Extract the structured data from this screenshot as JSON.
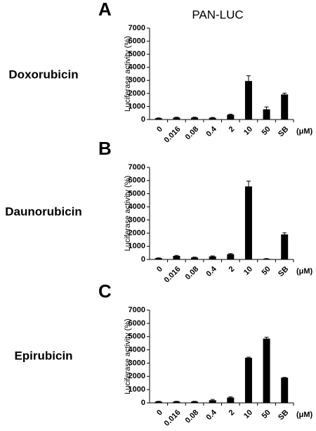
{
  "chart_data": [
    {
      "type": "bar",
      "panel_label": "A",
      "title": "PAN-LUC",
      "row_label": "Doxorubicin",
      "ylabel": "Luciferase activity (%)",
      "unit_label": "(μM)",
      "categories": [
        "0",
        "0.016",
        "0.08",
        "0.4",
        "2",
        "10",
        "50",
        "SB"
      ],
      "values": [
        100,
        150,
        150,
        130,
        370,
        2950,
        780,
        1920
      ],
      "errors": [
        20,
        30,
        30,
        30,
        40,
        400,
        180,
        100
      ],
      "color": "#000000",
      "ylim": [
        0,
        7000
      ],
      "yticks": [
        0,
        1000,
        2000,
        3000,
        4000,
        5000,
        6000,
        7000
      ]
    },
    {
      "type": "bar",
      "panel_label": "B",
      "row_label": "Daunorubicin",
      "ylabel": "Luciferase activity (%)",
      "unit_label": "(μM)",
      "categories": [
        "0",
        "0.016",
        "0.08",
        "0.4",
        "2",
        "10",
        "50",
        "SB"
      ],
      "values": [
        100,
        270,
        150,
        230,
        400,
        5550,
        50,
        1900
      ],
      "errors": [
        20,
        40,
        30,
        40,
        40,
        400,
        20,
        130
      ],
      "color": "#000000",
      "ylim": [
        0,
        7000
      ],
      "yticks": [
        0,
        1000,
        2000,
        3000,
        4000,
        5000,
        6000,
        7000
      ]
    },
    {
      "type": "bar",
      "panel_label": "C",
      "row_label": "Epirubicin",
      "ylabel": "Luciferase activity (%)",
      "unit_label": "(μM)",
      "categories": [
        "0",
        "0.016",
        "0.08",
        "0.4",
        "2",
        "10",
        "50",
        "SB"
      ],
      "values": [
        100,
        100,
        100,
        200,
        400,
        3400,
        4850,
        1900
      ],
      "errors": [
        20,
        20,
        20,
        60,
        50,
        50,
        100,
        20
      ],
      "color": "#000000",
      "ylim": [
        0,
        7000
      ],
      "yticks": [
        0,
        1000,
        2000,
        3000,
        4000,
        5000,
        6000,
        7000
      ]
    }
  ]
}
